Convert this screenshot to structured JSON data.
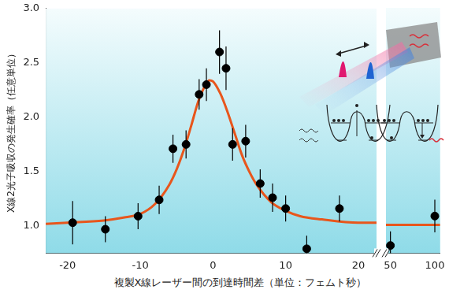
{
  "chart_data": [
    {
      "type": "scatter",
      "y_label": "X線2光子吸収の発生確率（任意単位）",
      "x_label": "複製X線レーザー間の到達時間差（単位：フェムト秒）",
      "xlim": [
        -23,
        22.5
      ],
      "xticks": [
        -20,
        -10,
        0,
        10,
        20
      ],
      "ylim": [
        0.75,
        3.0
      ],
      "yticks": [
        {
          "value": 1,
          "label": "1.0"
        },
        {
          "value": 1.5,
          "label": "1.5"
        },
        {
          "value": 2,
          "label": "2.0"
        },
        {
          "value": 2.5,
          "label": "2.5"
        },
        {
          "value": 3,
          "label": "3.0"
        }
      ],
      "grid": false,
      "series": [
        {
          "type": "scatter",
          "color": "#000000",
          "marker": "circle",
          "x": [
            -19.3,
            -14.8,
            -10.3,
            -7.4,
            -5.5,
            -3.7,
            -1.9,
            -0.9,
            0.9,
            1.8,
            2.7,
            4.5,
            6.5,
            8.2,
            10.0,
            12.9,
            17.4
          ],
          "values": [
            1.03,
            0.97,
            1.09,
            1.24,
            1.71,
            1.75,
            2.21,
            2.3,
            2.6,
            2.45,
            1.75,
            1.78,
            1.39,
            1.26,
            1.16,
            0.79,
            1.16
          ],
          "errors": [
            0.2,
            0.12,
            0.12,
            0.13,
            0.13,
            0.13,
            0.14,
            0.15,
            0.2,
            0.2,
            0.15,
            0.15,
            0.13,
            0.13,
            0.12,
            0.12,
            0.12
          ]
        },
        {
          "type": "line",
          "color": "#e8561c",
          "line_style": "solid",
          "x": [
            -23,
            -20,
            -15,
            -12,
            -10,
            -8,
            -6,
            -5,
            -4,
            -3,
            -2,
            -1,
            -0.5,
            0,
            1,
            2,
            3,
            4,
            5,
            6,
            8,
            10,
            12,
            15,
            20,
            22.5
          ],
          "values": [
            1.02,
            1.03,
            1.05,
            1.08,
            1.11,
            1.2,
            1.38,
            1.52,
            1.7,
            1.92,
            2.15,
            2.3,
            2.34,
            2.33,
            2.22,
            2.05,
            1.85,
            1.65,
            1.5,
            1.38,
            1.22,
            1.14,
            1.09,
            1.06,
            1.03,
            1.03
          ]
        }
      ]
    },
    {
      "type": "scatter",
      "xlim": [
        45,
        106
      ],
      "xticks": [
        50,
        100
      ],
      "ylim": [
        0.75,
        3.0
      ],
      "yticks": [
        {
          "value": 1,
          "label": "1.0"
        },
        {
          "value": 1.5,
          "label": "1.5"
        },
        {
          "value": 2,
          "label": "2.0"
        },
        {
          "value": 2.5,
          "label": "2.5"
        },
        {
          "value": 3,
          "label": "3.0"
        }
      ],
      "grid": false,
      "tick_labels": "x",
      "series": [
        {
          "type": "scatter",
          "color": "#000000",
          "marker": "circle",
          "x": [
            50,
            100
          ],
          "values": [
            0.82,
            1.09
          ],
          "errors": [
            0.13,
            0.15
          ]
        },
        {
          "type": "line",
          "color": "#e8561c",
          "line_style": "solid",
          "x": [
            45,
            106
          ],
          "values": [
            1.01,
            1.01
          ]
        }
      ]
    }
  ]
}
